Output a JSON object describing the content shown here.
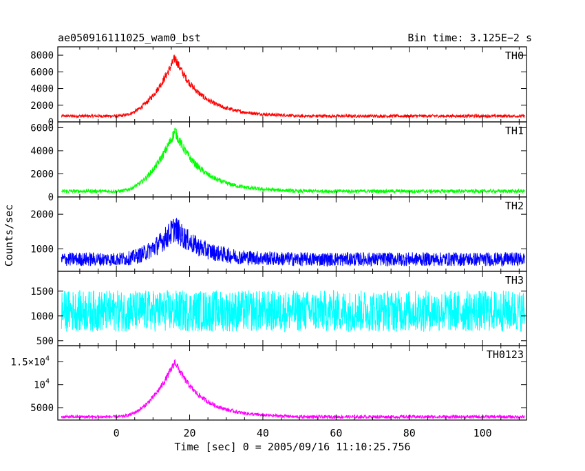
{
  "chart_data": {
    "type": "line",
    "title": "ae050916111025_wam0_bst",
    "bin_time": "Bin time: 3.125E−2 s",
    "xlabel": "Time [sec] 0 = 2005/09/16 11:10:25.756",
    "ylabel": "Counts/sec",
    "xlim": [
      -16,
      112
    ],
    "xticks": [
      0,
      20,
      40,
      60,
      80,
      100
    ],
    "grid": false,
    "panels": [
      {
        "name": "TH0",
        "color": "#ff0000",
        "ylim": [
          0,
          9000
        ],
        "yticks": [
          {
            "value": 0,
            "label": "0"
          },
          {
            "value": 2000,
            "label": "2000"
          },
          {
            "value": 4000,
            "label": "4000"
          },
          {
            "value": 6000,
            "label": "6000"
          },
          {
            "value": 8000,
            "label": "8000"
          }
        ],
        "baseline": 700,
        "peak": 7700,
        "peak_time": 16,
        "rise_start": 0,
        "decay_end": 40,
        "noise": 180,
        "peak_noise": 600
      },
      {
        "name": "TH1",
        "color": "#00ff00",
        "ylim": [
          0,
          6500
        ],
        "yticks": [
          {
            "value": 0,
            "label": "0"
          },
          {
            "value": 2000,
            "label": "2000"
          },
          {
            "value": 4000,
            "label": "4000"
          },
          {
            "value": 6000,
            "label": "6000"
          }
        ],
        "baseline": 500,
        "peak": 5700,
        "peak_time": 16,
        "rise_start": 0,
        "decay_end": 40,
        "noise": 150,
        "peak_noise": 500
      },
      {
        "name": "TH2",
        "color": "#0000ff",
        "ylim": [
          350,
          2500
        ],
        "yticks": [
          {
            "value": 1000,
            "label": "1000"
          },
          {
            "value": 2000,
            "label": "2000"
          }
        ],
        "baseline": 700,
        "peak": 1600,
        "peak_time": 16,
        "rise_start": 0,
        "decay_end": 40,
        "noise": 200,
        "peak_noise": 400
      },
      {
        "name": "TH3",
        "color": "#00ffff",
        "ylim": [
          400,
          1900
        ],
        "yticks": [
          {
            "value": 500,
            "label": "500"
          },
          {
            "value": 1000,
            "label": "1000"
          },
          {
            "value": 1500,
            "label": "1500"
          }
        ],
        "baseline": 1100,
        "peak": 1100,
        "peak_time": 16,
        "rise_start": 0,
        "decay_end": 40,
        "noise": 420,
        "peak_noise": 420
      },
      {
        "name": "TH0123",
        "color": "#ff00ff",
        "ylim": [
          2300,
          18500
        ],
        "yticks": [
          {
            "value": 5000,
            "label": "5000"
          },
          {
            "value": 10000,
            "label": "10",
            "sup": "4"
          },
          {
            "value": 15000,
            "label": "1.5×10",
            "sup": "4"
          }
        ],
        "baseline": 3000,
        "peak": 15000,
        "peak_time": 16,
        "rise_start": 0,
        "decay_end": 40,
        "noise": 350,
        "peak_noise": 900
      }
    ]
  }
}
